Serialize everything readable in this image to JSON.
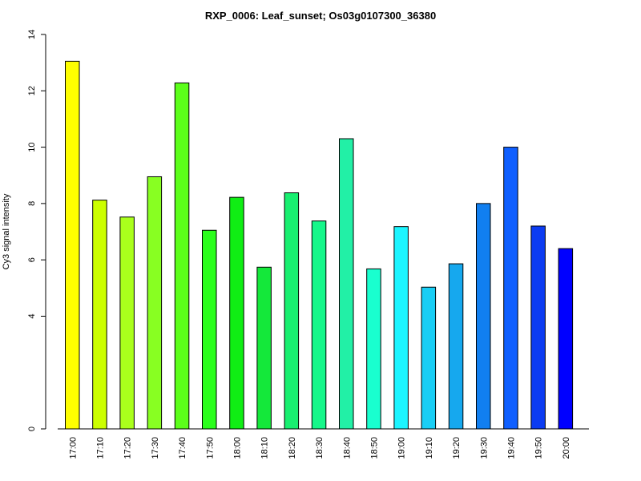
{
  "chart_data": {
    "type": "bar",
    "title": "RXP_0006: Leaf_sunset; Os03g0107300_36380",
    "xlabel": "",
    "ylabel": "Cy3 signal intensity",
    "categories": [
      "17:00",
      "17:10",
      "17:20",
      "17:30",
      "17:40",
      "17:50",
      "18:00",
      "18:10",
      "18:20",
      "18:30",
      "18:40",
      "18:50",
      "19:00",
      "19:10",
      "19:20",
      "19:30",
      "19:40",
      "19:50",
      "20:00"
    ],
    "values": [
      13.05,
      8.12,
      7.52,
      8.95,
      12.28,
      7.05,
      8.22,
      5.74,
      8.38,
      7.38,
      10.3,
      5.68,
      7.18,
      5.03,
      5.86,
      8.0,
      10.0,
      7.2,
      6.4
    ],
    "colors": [
      "#ffff00",
      "#ccff00",
      "#aaff1c",
      "#88ff22",
      "#5cff1a",
      "#2bff1c",
      "#10ee14",
      "#14e83a",
      "#18ef70",
      "#16f78a",
      "#22f0a6",
      "#19ffcf",
      "#1cf5ff",
      "#19cef5",
      "#16a8ee",
      "#117ff0",
      "#0f5fff",
      "#0c3cf2",
      "#0000ff"
    ],
    "yticks": [
      0,
      4,
      6,
      8,
      10,
      12,
      14
    ],
    "ylim": [
      0,
      14
    ],
    "grid": false,
    "legend": "none"
  }
}
